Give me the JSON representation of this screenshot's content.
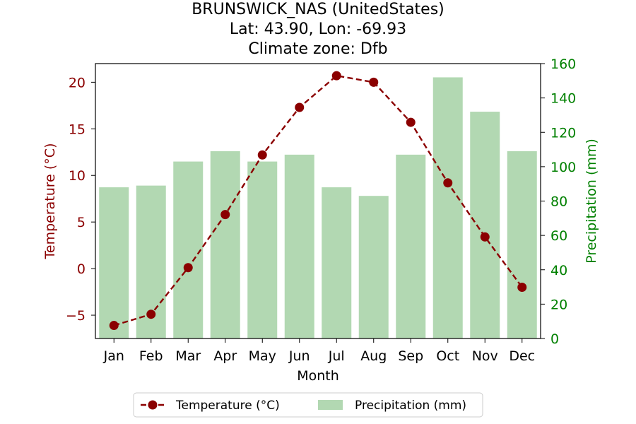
{
  "chart_data": {
    "type": "bar",
    "title_lines": [
      "BRUNSWICK_NAS (UnitedStates)",
      "Lat: 43.90, Lon: -69.93",
      "Climate zone: Dfb"
    ],
    "xlabel": "Month",
    "ylabel_left": "Temperature (°C)",
    "ylabel_right": "Precipitation (mm)",
    "categories": [
      "Jan",
      "Feb",
      "Mar",
      "Apr",
      "May",
      "Jun",
      "Jul",
      "Aug",
      "Sep",
      "Oct",
      "Nov",
      "Dec"
    ],
    "series": [
      {
        "name": "Temperature (°C)",
        "type": "line",
        "axis": "left",
        "color": "#8b0000",
        "line_style": "dashed",
        "marker": "circle",
        "values": [
          -6.1,
          -4.9,
          0.1,
          5.8,
          12.2,
          17.3,
          20.7,
          20.0,
          15.7,
          9.2,
          3.4,
          -2.0
        ]
      },
      {
        "name": "Precipitation (mm)",
        "type": "bar",
        "axis": "right",
        "color": "#b2d8b2",
        "values": [
          88,
          89,
          103,
          109,
          103,
          107,
          88,
          83,
          107,
          152,
          132,
          109
        ]
      }
    ],
    "ylim_left": [
      -7.5,
      22
    ],
    "ylim_right": [
      0,
      160
    ],
    "yticks_left": [
      -5,
      0,
      5,
      10,
      15,
      20
    ],
    "yticks_left_labels": [
      "−5",
      "0",
      "5",
      "10",
      "15",
      "20"
    ],
    "yticks_right": [
      0,
      20,
      40,
      60,
      80,
      100,
      120,
      140,
      160
    ],
    "left_axis_color": "#8b0000",
    "right_axis_color": "#008000",
    "grid": false,
    "legend_position": "bottom-center"
  }
}
